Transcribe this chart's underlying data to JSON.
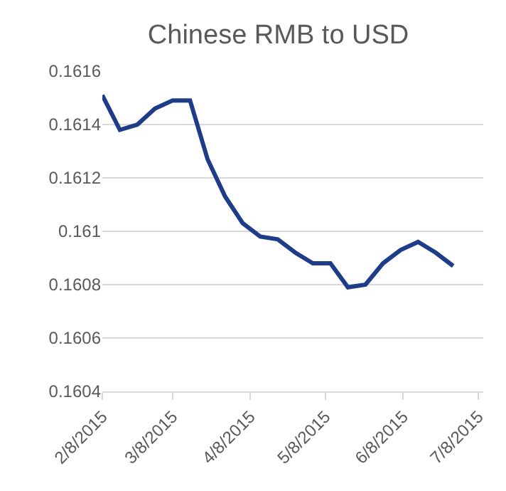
{
  "chart_data": {
    "type": "line",
    "title": "Chinese RMB to USD",
    "x": [
      "2015-02-08",
      "2015-02-15",
      "2015-02-22",
      "2015-03-01",
      "2015-03-08",
      "2015-03-15",
      "2015-03-22",
      "2015-03-29",
      "2015-04-05",
      "2015-04-12",
      "2015-04-19",
      "2015-04-26",
      "2015-05-03",
      "2015-05-10",
      "2015-05-17",
      "2015-05-24",
      "2015-05-31",
      "2015-06-07",
      "2015-06-14",
      "2015-06-21",
      "2015-06-28"
    ],
    "series": [
      {
        "color": "#1f3c88",
        "values": [
          0.16151,
          0.16138,
          0.1614,
          0.16146,
          0.16149,
          0.16149,
          0.16127,
          0.16113,
          0.16103,
          0.16098,
          0.16097,
          0.16092,
          0.16088,
          0.16088,
          0.16079,
          0.1608,
          0.16088,
          0.16093,
          0.16096,
          0.16092,
          0.16087
        ]
      }
    ],
    "xlim": [
      "2015-02-08",
      "2015-07-10"
    ],
    "xticks": [
      {
        "value": "2015-02-08",
        "label": "2/8/2015"
      },
      {
        "value": "2015-03-08",
        "label": "3/8/2015"
      },
      {
        "value": "2015-04-08",
        "label": "4/8/2015"
      },
      {
        "value": "2015-05-08",
        "label": "5/8/2015"
      },
      {
        "value": "2015-06-08",
        "label": "6/8/2015"
      },
      {
        "value": "2015-07-08",
        "label": "7/8/2015"
      }
    ],
    "ylim": [
      0.1604,
      0.1616
    ],
    "yticks": [
      0.1604,
      0.1606,
      0.1608,
      0.161,
      0.1612,
      0.1614,
      0.1616
    ],
    "grid": "y",
    "marker": "none",
    "line_style": "solid"
  }
}
